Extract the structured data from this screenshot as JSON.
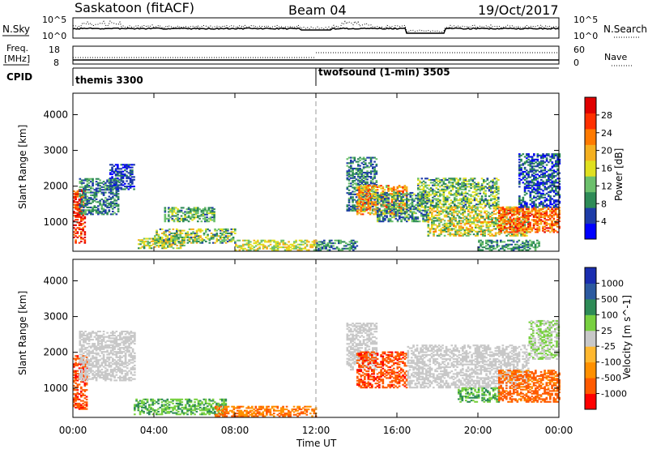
{
  "header": {
    "title": "Saskatoon (fitACF)",
    "beam": "Beam 04",
    "date": "19/Oct/2017"
  },
  "top_panel": {
    "left_label": "N.Sky",
    "right_label": "N.Search",
    "left_ticks": [
      "10^5",
      "10^0"
    ],
    "right_ticks": [
      "10^5",
      "10^0"
    ]
  },
  "freq_panel": {
    "left_label_line1": "Freq.",
    "left_label_line2": "[MHz]",
    "right_label": "Nave",
    "left_ticks": [
      "18",
      "8"
    ],
    "right_ticks": [
      "60",
      "0"
    ]
  },
  "cpid": {
    "label": "CPID",
    "segments": [
      {
        "name": "themis 3300",
        "start_hour": 0
      },
      {
        "name": "twofsound (1-min) 3505",
        "start_hour": 12
      }
    ]
  },
  "x_axis": {
    "label": "Time UT",
    "ticks": [
      "00:00",
      "04:00",
      "08:00",
      "12:00",
      "16:00",
      "20:00",
      "00:00"
    ]
  },
  "chart_data": [
    {
      "type": "heatmap",
      "name": "power",
      "ylabel": "Slant Range [km]",
      "y_ticks": [
        1000,
        2000,
        3000,
        4000
      ],
      "ylim": [
        180,
        4600
      ],
      "xlim_hours": [
        0,
        24
      ],
      "colorbar": {
        "label": "Power [dB]",
        "ticks": [
          "28",
          "24",
          "20",
          "16",
          "12",
          "8",
          "4"
        ],
        "colors": [
          "#0000ff",
          "#1e3ca8",
          "#2e8b57",
          "#6cc06c",
          "#e0e020",
          "#f4b020",
          "#ff7a00",
          "#ff3000",
          "#e00000"
        ]
      },
      "regions": [
        {
          "t": [
            0.0,
            0.6
          ],
          "r": [
            400,
            1900
          ],
          "p": [
            22,
            30
          ]
        },
        {
          "t": [
            0.3,
            2.2
          ],
          "r": [
            1200,
            2200
          ],
          "p": [
            6,
            14
          ]
        },
        {
          "t": [
            1.8,
            3.0
          ],
          "r": [
            1900,
            2600
          ],
          "p": [
            4,
            10
          ]
        },
        {
          "t": [
            3.2,
            5.5
          ],
          "r": [
            250,
            550
          ],
          "p": [
            10,
            20
          ]
        },
        {
          "t": [
            4.5,
            7.0
          ],
          "r": [
            1000,
            1400
          ],
          "p": [
            8,
            16
          ]
        },
        {
          "t": [
            4.0,
            8.0
          ],
          "r": [
            400,
            800
          ],
          "p": [
            8,
            20
          ]
        },
        {
          "t": [
            8.0,
            12.0
          ],
          "r": [
            200,
            500
          ],
          "p": [
            12,
            20
          ]
        },
        {
          "t": [
            12.0,
            14.0
          ],
          "r": [
            200,
            500
          ],
          "p": [
            6,
            14
          ]
        },
        {
          "t": [
            13.5,
            15.0
          ],
          "r": [
            1300,
            2800
          ],
          "p": [
            6,
            14
          ]
        },
        {
          "t": [
            14.0,
            16.5
          ],
          "r": [
            1200,
            2000
          ],
          "p": [
            14,
            26
          ]
        },
        {
          "t": [
            15.0,
            17.5
          ],
          "r": [
            1000,
            1800
          ],
          "p": [
            6,
            16
          ]
        },
        {
          "t": [
            17.0,
            21.0
          ],
          "r": [
            1400,
            2200
          ],
          "p": [
            8,
            18
          ]
        },
        {
          "t": [
            17.5,
            22.5
          ],
          "r": [
            600,
            1400
          ],
          "p": [
            10,
            22
          ]
        },
        {
          "t": [
            20.0,
            23.0
          ],
          "r": [
            200,
            500
          ],
          "p": [
            8,
            14
          ]
        },
        {
          "t": [
            21.0,
            24.0
          ],
          "r": [
            700,
            1400
          ],
          "p": [
            18,
            28
          ]
        },
        {
          "t": [
            22.0,
            24.0
          ],
          "r": [
            1400,
            2900
          ],
          "p": [
            4,
            12
          ]
        }
      ]
    },
    {
      "type": "heatmap",
      "name": "velocity",
      "ylabel": "Slant Range [km]",
      "y_ticks": [
        1000,
        2000,
        3000,
        4000
      ],
      "ylim": [
        180,
        4600
      ],
      "xlim_hours": [
        0,
        24
      ],
      "colorbar": {
        "label": "Velocity [m s^-1]",
        "ticks": [
          "1000",
          "500",
          "100",
          "25",
          "-25",
          "-100",
          "-500",
          "-1000"
        ],
        "colors": [
          "#ff0000",
          "#ff5a00",
          "#ff9000",
          "#ffb830",
          "#c8c8c8",
          "#78d040",
          "#2e8b57",
          "#2c5aa0",
          "#1a2eb0"
        ]
      },
      "regions": [
        {
          "t": [
            0.0,
            0.7
          ],
          "r": [
            400,
            1900
          ],
          "v": [
            -600,
            -100
          ]
        },
        {
          "t": [
            0.3,
            3.0
          ],
          "r": [
            1200,
            2600
          ],
          "v": [
            -20,
            20
          ]
        },
        {
          "t": [
            3.0,
            7.5
          ],
          "r": [
            250,
            700
          ],
          "v": [
            30,
            150
          ]
        },
        {
          "t": [
            7.0,
            12.0
          ],
          "r": [
            200,
            500
          ],
          "v": [
            -150,
            -40
          ]
        },
        {
          "t": [
            13.5,
            15.0
          ],
          "r": [
            1500,
            2800
          ],
          "v": [
            -20,
            20
          ]
        },
        {
          "t": [
            14.0,
            16.5
          ],
          "r": [
            1000,
            2000
          ],
          "v": [
            -600,
            -100
          ]
        },
        {
          "t": [
            16.5,
            22.5
          ],
          "r": [
            1000,
            2200
          ],
          "v": [
            -20,
            20
          ]
        },
        {
          "t": [
            19.0,
            21.0
          ],
          "r": [
            600,
            1000
          ],
          "v": [
            40,
            150
          ]
        },
        {
          "t": [
            21.0,
            24.0
          ],
          "r": [
            600,
            1500
          ],
          "v": [
            -300,
            -40
          ]
        },
        {
          "t": [
            22.5,
            24.0
          ],
          "r": [
            1800,
            2900
          ],
          "v": [
            -20,
            60
          ]
        }
      ]
    }
  ]
}
